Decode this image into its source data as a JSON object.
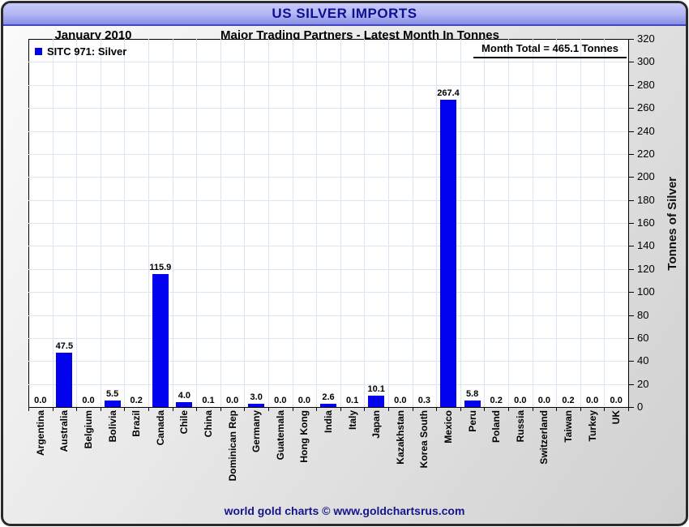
{
  "header": {
    "title": "US SILVER IMPORTS"
  },
  "subheader": {
    "period": "January 2010",
    "subtitle": "Major Trading Partners - Latest Month In Tonnes"
  },
  "legend": {
    "label": "SITC 971: Silver",
    "swatch_color": "#0202ee"
  },
  "annotation": {
    "month_total": "Month Total = 465.1 Tonnes"
  },
  "footer": {
    "credit": "world gold charts © www.goldchartsrus.com"
  },
  "colors": {
    "bar": "#0202ee",
    "grid": "#d9e5f2",
    "title_text": "#0f0f92",
    "footer_text": "#15158c",
    "title_bar_top": "#c7caf8",
    "title_bar_bottom": "#8a8fe4"
  },
  "chart_data": {
    "type": "bar",
    "title": "US SILVER IMPORTS",
    "subtitle": "Major Trading Partners - Latest Month In Tonnes",
    "period": "January 2010",
    "series_name": "SITC 971: Silver",
    "month_total_label": "Month Total = 465.1 Tonnes",
    "month_total_tonnes": 465.1,
    "categories": [
      "Argentina",
      "Australia",
      "Belgium",
      "Bolivia",
      "Brazil",
      "Canada",
      "Chile",
      "China",
      "Dominican Rep",
      "Germany",
      "Guatemala",
      "Hong Kong",
      "India",
      "Italy",
      "Japan",
      "Kazakhstan",
      "Korea South",
      "Mexico",
      "Peru",
      "Poland",
      "Russia",
      "Switzerland",
      "Taiwan",
      "Turkey",
      "UK"
    ],
    "values": [
      0.0,
      47.5,
      0.0,
      5.5,
      0.2,
      115.9,
      4.0,
      0.1,
      0.0,
      3.0,
      0.0,
      0.0,
      2.6,
      0.1,
      10.1,
      0.0,
      0.3,
      267.4,
      5.8,
      0.2,
      0.0,
      0.0,
      0.2,
      0.0,
      0.0
    ],
    "xlabel": "",
    "ylabel": "Tonnes of Silver",
    "ylim": [
      0,
      320
    ],
    "ytick_step": 20,
    "grid": true,
    "legend_position": "top-left",
    "bar_color": "#0202ee",
    "value_labels_shown": true
  }
}
